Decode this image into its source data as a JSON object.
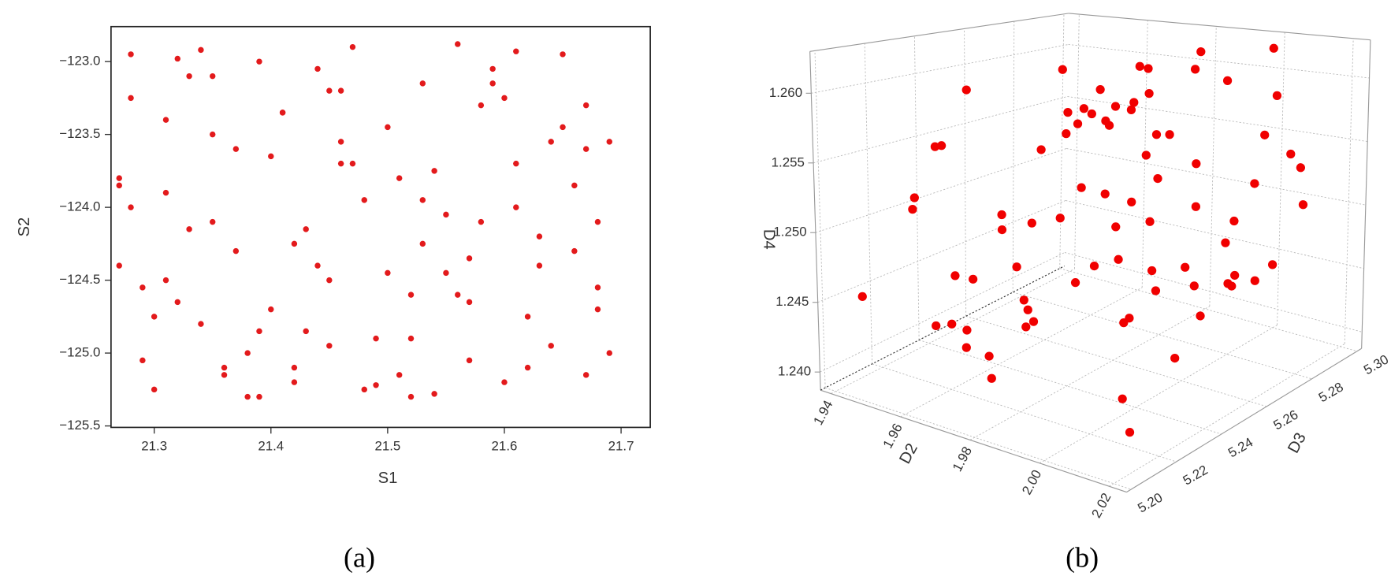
{
  "chart_data": [
    {
      "type": "scatter",
      "xlabel": "S1",
      "ylabel": "S2",
      "panel_label": "(a)",
      "color": "#e31a1c",
      "xlim": [
        21.263,
        21.725
      ],
      "ylim": [
        -125.51,
        -122.76
      ],
      "xticks": [
        21.3,
        21.4,
        21.5,
        21.6,
        21.7
      ],
      "yticks": [
        {
          "value": -125.5,
          "label": "−125.5"
        },
        {
          "value": -125,
          "label": "−125.0"
        },
        {
          "value": -124.5,
          "label": "−124.5"
        },
        {
          "value": -124,
          "label": "−124.0"
        },
        {
          "value": -123.5,
          "label": "−123.5"
        },
        {
          "value": -123,
          "label": "−123.0"
        }
      ],
      "x": [
        21.28,
        21.31,
        21.35,
        21.39,
        21.42,
        21.46,
        21.5,
        21.53,
        21.57,
        21.61,
        21.64,
        21.68,
        21.27,
        21.3,
        21.34,
        21.37,
        21.41,
        21.45,
        21.48,
        21.52,
        21.56,
        21.59,
        21.63,
        21.67,
        21.29,
        21.33,
        21.36,
        21.4,
        21.44,
        21.47,
        21.51,
        21.55,
        21.58,
        21.62,
        21.66,
        21.69,
        21.28,
        21.32,
        21.35,
        21.38,
        21.43,
        21.46,
        21.49,
        21.54,
        21.57,
        21.6,
        21.65,
        21.68,
        21.27,
        21.31,
        21.34,
        21.39,
        21.42,
        21.45,
        21.5,
        21.53,
        21.56,
        21.61,
        21.64,
        21.67,
        21.29,
        21.33,
        21.37,
        21.4,
        21.44,
        21.48,
        21.51,
        21.55,
        21.59,
        21.62,
        21.66,
        21.69,
        21.28,
        21.32,
        21.36,
        21.41,
        21.43,
        21.47,
        21.52,
        21.54,
        21.58,
        21.6,
        21.65,
        21.68,
        21.3,
        21.35,
        21.38,
        21.42,
        21.46,
        21.49,
        21.53,
        21.57,
        21.61,
        21.63,
        21.67,
        21.27,
        21.31,
        21.39,
        21.45,
        21.52
      ],
      "values": [
        -122.95,
        -123.4,
        -124.1,
        -124.85,
        -125.2,
        -123.7,
        -124.45,
        -123.15,
        -125.05,
        -124.0,
        -123.55,
        -124.7,
        -123.8,
        -125.25,
        -122.92,
        -124.3,
        -123.35,
        -124.95,
        -123.95,
        -125.3,
        -124.6,
        -123.05,
        -124.2,
        -123.6,
        -124.55,
        -123.1,
        -125.1,
        -123.65,
        -124.4,
        -122.9,
        -125.15,
        -124.05,
        -123.3,
        -124.75,
        -123.85,
        -125.0,
        -123.25,
        -124.65,
        -123.5,
        -125.3,
        -124.15,
        -123.2,
        -124.9,
        -123.75,
        -124.35,
        -125.2,
        -122.95,
        -124.1,
        -124.4,
        -123.9,
        -124.8,
        -123.0,
        -125.1,
        -124.5,
        -123.45,
        -124.25,
        -122.88,
        -123.7,
        -124.95,
        -123.3,
        -125.05,
        -124.15,
        -123.6,
        -124.7,
        -123.05,
        -125.25,
        -123.8,
        -124.45,
        -123.15,
        -125.1,
        -124.3,
        -123.55,
        -124.0,
        -122.98,
        -125.15,
        -123.35,
        -124.85,
        -123.7,
        -124.6,
        -125.28,
        -124.1,
        -123.25,
        -123.45,
        -124.55,
        -124.75,
        -123.1,
        -125.0,
        -124.25,
        -123.55,
        -125.22,
        -123.95,
        -124.65,
        -122.93,
        -124.4,
        -125.15,
        -123.85,
        -124.5,
        -125.3,
        -123.2,
        -124.9
      ]
    },
    {
      "type": "scatter3d",
      "xlabel": "D2",
      "ylabel": "D3",
      "zlabel": "D4",
      "panel_label": "(b)",
      "color": "#f00000",
      "xlim": [
        1.937,
        2.025
      ],
      "ylim": [
        5.198,
        5.302
      ],
      "zlim": [
        1.2387,
        1.263
      ],
      "xticks": [
        1.94,
        1.96,
        1.98,
        {
          "value": 2,
          "label": "2.00"
        },
        2.02
      ],
      "yticks": [
        {
          "value": 5.2,
          "label": "5.20"
        },
        5.22,
        5.24,
        5.26,
        5.28,
        {
          "value": 5.3,
          "label": "5.30"
        }
      ],
      "zticks": [
        {
          "value": 1.24,
          "label": "1.240"
        },
        1.245,
        {
          "value": 1.25,
          "label": "1.250"
        },
        1.255,
        {
          "value": 1.26,
          "label": "1.260"
        }
      ],
      "x": [
        1.945,
        1.962,
        1.978,
        1.991,
        2.005,
        2.015,
        1.952,
        1.968,
        1.984,
        1.998,
        2.01,
        2.018,
        1.948,
        1.958,
        1.975,
        1.988,
        2.002,
        2.012,
        1.955,
        1.971,
        1.981,
        1.995,
        2.008,
        2.016,
        1.942,
        1.965,
        1.979,
        1.993,
        2.004,
        2.013,
        1.95,
        1.969,
        1.986,
        1.997,
        2.011,
        2.019,
        1.946,
        1.96,
        1.976,
        1.989,
        2.001,
        2.014,
        1.957,
        1.973,
        1.983,
        1.996,
        2.007,
        2.017,
        1.944,
        1.963,
        1.98,
        1.992,
        2.006,
        2.012,
        1.953,
        1.967,
        1.985,
        1.999,
        2.009,
        2.02,
        1.949,
        1.961,
        1.977,
        1.99,
        2.003,
        2.015,
        1.956,
        1.972,
        1.982,
        1.994,
        1.947,
        1.966,
        1.987,
        2.0,
        2.013,
        1.959,
        1.974,
        1.993,
        2.008,
        2.018
      ],
      "y": [
        5.205,
        5.28,
        5.24,
        5.295,
        5.22,
        5.26,
        5.27,
        5.215,
        5.29,
        5.235,
        5.25,
        5.21,
        5.245,
        5.225,
        5.285,
        5.255,
        5.275,
        5.23,
        5.212,
        5.265,
        5.238,
        5.298,
        5.222,
        5.282,
        5.268,
        5.292,
        5.208,
        5.248,
        5.232,
        5.272,
        5.288,
        5.242,
        5.258,
        5.218,
        5.278,
        5.228,
        5.226,
        5.252,
        5.262,
        5.208,
        5.296,
        5.244,
        5.234,
        5.284,
        5.214,
        5.274,
        5.238,
        5.254,
        5.29,
        5.216,
        5.246,
        5.276,
        5.256,
        5.294,
        5.224,
        5.204,
        5.266,
        5.236,
        5.286,
        5.248,
        5.258,
        5.278,
        5.212,
        5.232,
        5.242,
        5.288,
        5.296,
        5.252,
        5.222,
        5.27,
        5.236,
        5.244,
        5.264,
        5.282,
        5.206,
        5.228,
        5.292,
        5.256,
        5.218,
        5.272
      ],
      "z": [
        1.2455,
        1.258,
        1.251,
        1.242,
        1.26,
        1.2475,
        1.253,
        1.244,
        1.2615,
        1.2495,
        1.256,
        1.241,
        1.259,
        1.2465,
        1.2545,
        1.243,
        1.2605,
        1.2485,
        1.252,
        1.245,
        1.2575,
        1.2505,
        1.2415,
        1.255,
        1.247,
        1.2595,
        1.2435,
        1.2525,
        1.261,
        1.246,
        1.254,
        1.2425,
        1.2585,
        1.249,
        1.2565,
        1.2445,
        1.2515,
        1.2405,
        1.257,
        1.248,
        1.262,
        1.2535,
        1.2455,
        1.26,
        1.2495,
        1.242,
        1.2555,
        1.2475,
        1.2585,
        1.244,
        1.253,
        1.261,
        1.2465,
        1.25,
        1.2425,
        1.2575,
        1.2545,
        1.245,
        1.259,
        1.251,
        1.247,
        1.256,
        1.2415,
        1.26,
        1.2485,
        1.2535,
        1.2445,
        1.258,
        1.252,
        1.246,
        1.255,
        1.243,
        1.2595,
        1.249,
        1.2565,
        1.241,
        1.254,
        1.2505,
        1.2615,
        1.2475
      ]
    }
  ]
}
